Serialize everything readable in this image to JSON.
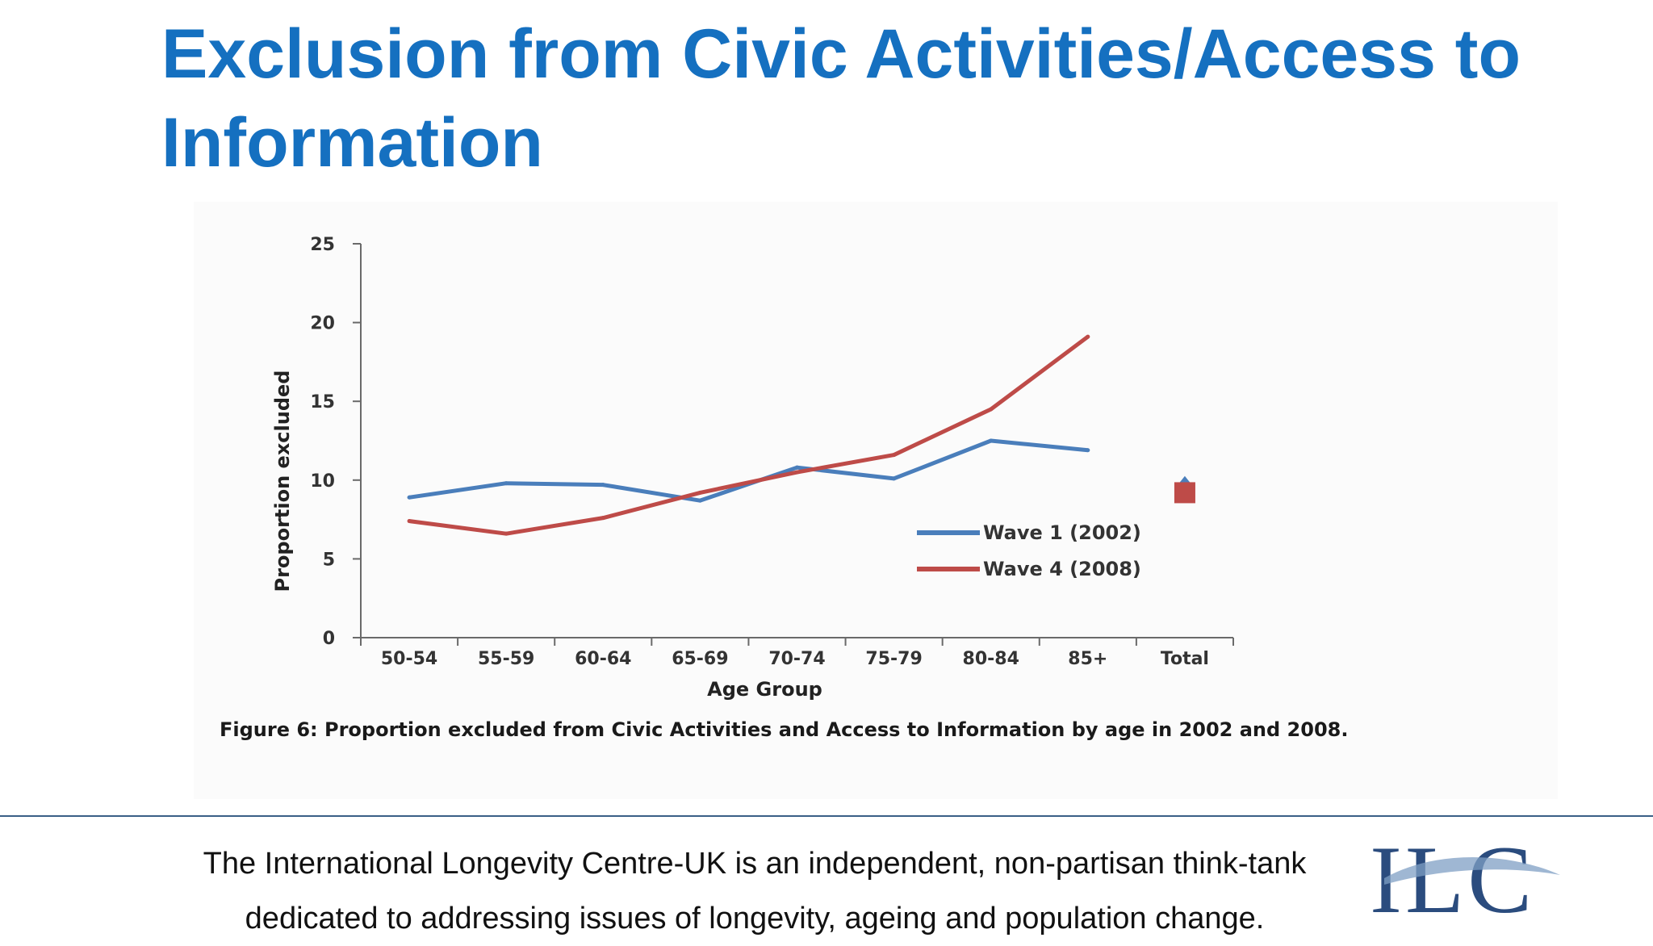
{
  "slide": {
    "title": "Exclusion from Civic Activities/Access to Information"
  },
  "chart_data": {
    "type": "line",
    "categories": [
      "50-54",
      "55-59",
      "60-64",
      "65-69",
      "70-74",
      "75-79",
      "80-84",
      "85+",
      "Total"
    ],
    "xlabel": "Age Group",
    "ylabel": "Proportion excluded",
    "ylim": [
      0,
      25
    ],
    "yticks": [
      0,
      5,
      10,
      15,
      20,
      25
    ],
    "grid": false,
    "legend_position": "right",
    "series": [
      {
        "name": "Wave 1 (2002)",
        "color": "#4a7ebb",
        "values": [
          8.9,
          9.8,
          9.7,
          8.7,
          10.8,
          10.1,
          12.5,
          11.9,
          9.8
        ]
      },
      {
        "name": "Wave 4 (2008)",
        "color": "#be4b48",
        "values": [
          7.4,
          6.6,
          7.6,
          9.2,
          10.5,
          11.6,
          14.5,
          19.1,
          9.2
        ]
      }
    ],
    "caption": "Figure 6: Proportion excluded from Civic Activities and Access to Information by age in 2002 and 2008."
  },
  "footer": {
    "line1": "The International Longevity Centre-UK is an independent, non-partisan think-tank",
    "line2": "dedicated to addressing issues of longevity, ageing and population change."
  },
  "logo": {
    "text": "ILC"
  }
}
